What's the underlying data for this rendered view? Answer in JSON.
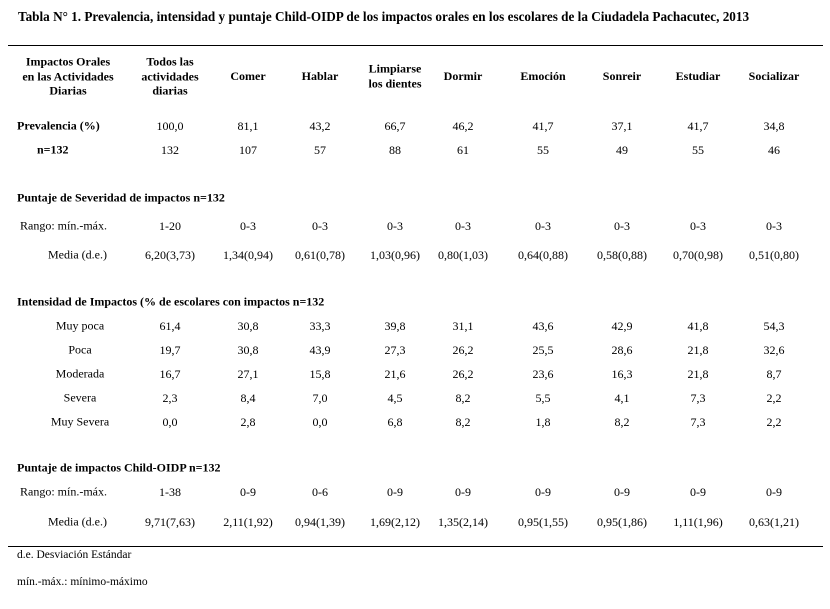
{
  "title": "Tabla N° 1. Prevalencia, intensidad y puntaje Child-OIDP de los impactos orales en los escolares de la Ciudadela Pachacutec, 2013",
  "headers": [
    "Impactos Orales\nen las Actividades\nDiarias",
    "Todos las\nactividades\ndiarias",
    "Comer",
    "Hablar",
    "Limpiarse\nlos dientes",
    "Dormir",
    "Emoción",
    "Sonreir",
    "Estudiar",
    "Socializar"
  ],
  "prevalence": {
    "rows": [
      {
        "label": "Prevalencia (%)",
        "values": [
          "100,0",
          "81,1",
          "43,2",
          "66,7",
          "46,2",
          "41,7",
          "37,1",
          "41,7",
          "34,8"
        ]
      },
      {
        "label": "n=132",
        "values": [
          "132",
          "107",
          "57",
          "88",
          "61",
          "55",
          "49",
          "55",
          "46"
        ]
      }
    ]
  },
  "severity": {
    "heading": "Puntaje de Severidad de impactos n=132",
    "rows": [
      {
        "label": "Rango: mín.-máx.",
        "values": [
          "1-20",
          "0-3",
          "0-3",
          "0-3",
          "0-3",
          "0-3",
          "0-3",
          "0-3",
          "0-3"
        ]
      },
      {
        "label": "Media (d.e.)",
        "values": [
          "6,20(3,73)",
          "1,34(0,94)",
          "0,61(0,78)",
          "1,03(0,96)",
          "0,80(1,03)",
          "0,64(0,88)",
          "0,58(0,88)",
          "0,70(0,98)",
          "0,51(0,80)"
        ]
      }
    ]
  },
  "intensity": {
    "heading": "Intensidad de Impactos (% de  escolares con impactos n=132",
    "rows": [
      {
        "label": "Muy poca",
        "values": [
          "61,4",
          "30,8",
          "33,3",
          "39,8",
          "31,1",
          "43,6",
          "42,9",
          "41,8",
          "54,3"
        ]
      },
      {
        "label": "Poca",
        "values": [
          "19,7",
          "30,8",
          "43,9",
          "27,3",
          "26,2",
          "25,5",
          "28,6",
          "21,8",
          "32,6"
        ]
      },
      {
        "label": "Moderada",
        "values": [
          "16,7",
          "27,1",
          "15,8",
          "21,6",
          "26,2",
          "23,6",
          "16,3",
          "21,8",
          "8,7"
        ]
      },
      {
        "label": "Severa",
        "values": [
          "2,3",
          "8,4",
          "7,0",
          "4,5",
          "8,2",
          "5,5",
          "4,1",
          "7,3",
          "2,2"
        ]
      },
      {
        "label": "Muy Severa",
        "values": [
          "0,0",
          "2,8",
          "0,0",
          "6,8",
          "8,2",
          "1,8",
          "8,2",
          "7,3",
          "2,2"
        ]
      }
    ]
  },
  "childoidp": {
    "heading": "Puntaje de impactos Child-OIDP n=132",
    "rows": [
      {
        "label": "Rango: mín.-máx.",
        "values": [
          "1-38",
          "0-9",
          "0-6",
          "0-9",
          "0-9",
          "0-9",
          "0-9",
          "0-9",
          "0-9"
        ]
      },
      {
        "label": "Media (d.e.)",
        "values": [
          "9,71(7,63)",
          "2,11(1,92)",
          "0,94(1,39)",
          "1,69(2,12)",
          "1,35(2,14)",
          "0,95(1,55)",
          "0,95(1,86)",
          "1,11(1,96)",
          "0,63(1,21)"
        ]
      }
    ]
  },
  "footnotes": [
    "d.e. Desviación Estándar",
    "mín.-máx.: mínimo-máximo"
  ]
}
